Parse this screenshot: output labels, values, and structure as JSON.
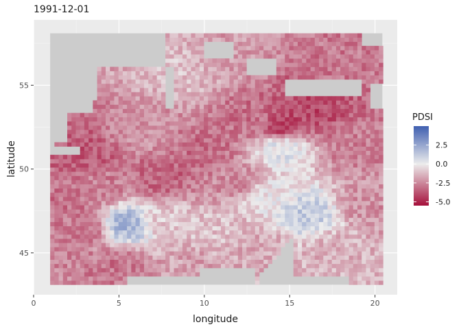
{
  "chart_data": {
    "type": "heatmap",
    "title": "1991-12-01",
    "xlabel": "longitude",
    "ylabel": "latitude",
    "xlim": [
      0,
      21.3
    ],
    "ylim": [
      42.5,
      58.9
    ],
    "x_ticks": [
      {
        "value": 0,
        "label": "0"
      },
      {
        "value": 5,
        "label": "5"
      },
      {
        "value": 10,
        "label": "10"
      },
      {
        "value": 15,
        "label": "15"
      },
      {
        "value": 20,
        "label": "20"
      }
    ],
    "y_ticks": [
      {
        "value": 45,
        "label": "45"
      },
      {
        "value": 50,
        "label": "50"
      },
      {
        "value": 55,
        "label": "55"
      }
    ],
    "grid": true,
    "data_extent": {
      "lon": [
        0.97,
        20.43
      ],
      "lat": [
        43.1,
        58.1
      ]
    },
    "cell_size_deg": 0.25,
    "missing_color": "#cccccc",
    "panel_background": "#ebebeb",
    "legend": {
      "title": "PDSI",
      "placement": "right",
      "range": [
        -5.5,
        5.0
      ],
      "breaks": [
        {
          "value": 2.5,
          "label": "2.5"
        },
        {
          "value": 0.0,
          "label": "0.0"
        },
        {
          "value": -2.5,
          "label": "-2.5"
        },
        {
          "value": -5.0,
          "label": "-5.0"
        }
      ],
      "colors": {
        "low": "#a50f3a",
        "mid": "#ececec",
        "high": "#3f5fb0"
      }
    },
    "regions": [
      {
        "lon": 4.0,
        "lat": 49.0,
        "value": -2.6
      },
      {
        "lon": 3.0,
        "lat": 46.5,
        "value": -2.8
      },
      {
        "lon": 2.0,
        "lat": 48.0,
        "value": -3.0
      },
      {
        "lon": 3.0,
        "lat": 50.8,
        "value": -3.6
      },
      {
        "lon": 7.5,
        "lat": 49.5,
        "value": -3.4
      },
      {
        "lon": 6.5,
        "lat": 52.0,
        "value": -2.2
      },
      {
        "lon": 9.0,
        "lat": 55.8,
        "value": -1.0
      },
      {
        "lon": 11.0,
        "lat": 56.5,
        "value": -2.0
      },
      {
        "lon": 12.8,
        "lat": 53.0,
        "value": -3.0
      },
      {
        "lon": 14.5,
        "lat": 52.5,
        "value": -4.2
      },
      {
        "lon": 16.5,
        "lat": 53.6,
        "value": -4.0
      },
      {
        "lon": 18.5,
        "lat": 56.2,
        "value": -2.8
      },
      {
        "lon": 14.5,
        "lat": 51.3,
        "value": 0.5
      },
      {
        "lon": 13.5,
        "lat": 48.5,
        "value": -0.2
      },
      {
        "lon": 16.0,
        "lat": 47.3,
        "value": 1.2
      },
      {
        "lon": 5.5,
        "lat": 46.7,
        "value": 2.0
      },
      {
        "lon": 7.5,
        "lat": 46.8,
        "value": -0.8
      },
      {
        "lon": 10.5,
        "lat": 46.0,
        "value": -1.0
      },
      {
        "lon": 13.0,
        "lat": 45.5,
        "value": -1.6
      },
      {
        "lon": 17.5,
        "lat": 45.2,
        "value": -1.4
      },
      {
        "lon": 19.5,
        "lat": 48.0,
        "value": -2.2
      },
      {
        "lon": 5.0,
        "lat": 44.3,
        "value": -2.9
      },
      {
        "lon": 9.5,
        "lat": 44.3,
        "value": -1.8
      },
      {
        "lon": 19.0,
        "lat": 51.5,
        "value": -2.7
      },
      {
        "lon": 10.0,
        "lat": 51.0,
        "value": -3.1
      },
      {
        "lon": 12.0,
        "lat": 49.2,
        "value": -2.4
      }
    ]
  }
}
